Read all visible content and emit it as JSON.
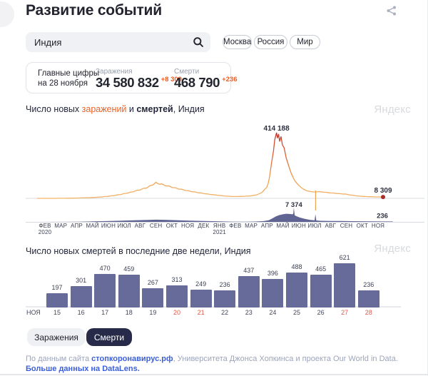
{
  "header": {
    "title": "Развитие событий"
  },
  "search": {
    "value": "Индия"
  },
  "regions": [
    {
      "label": "Москва"
    },
    {
      "label": "Россия"
    },
    {
      "label": "Мир"
    }
  ],
  "figures": {
    "title1": "Главные цифры",
    "title2": "на 28 ноября",
    "stats": [
      {
        "label": "Заражения",
        "value": "34 580 832",
        "delta": "+8 309"
      },
      {
        "label": "Смерти",
        "value": "468 790",
        "delta": "+236"
      }
    ]
  },
  "charts": {
    "watermark": "Яндекс"
  },
  "chart_data": [
    {
      "type": "line",
      "title_parts": {
        "prefix": "Число новых ",
        "highlight": "заражений",
        "middle": " и ",
        "bold": "смертей",
        "suffix": ", Индия"
      },
      "x_ticks": [
        {
          "label": "ФЕВ",
          "sub": "2020"
        },
        {
          "label": "МАР"
        },
        {
          "label": "АПР"
        },
        {
          "label": "МАЙ"
        },
        {
          "label": "ИЮН"
        },
        {
          "label": "ИЮЛ"
        },
        {
          "label": "АВГ"
        },
        {
          "label": "СЕН"
        },
        {
          "label": "ОКТ"
        },
        {
          "label": "НОЯ"
        },
        {
          "label": "ДЕК"
        },
        {
          "label": "ЯНВ",
          "sub": "2021"
        },
        {
          "label": "ФЕВ"
        },
        {
          "label": "МАР"
        },
        {
          "label": "АПР"
        },
        {
          "label": "МАЙ"
        },
        {
          "label": "ИЮН"
        },
        {
          "label": "ИЮЛ"
        },
        {
          "label": "АВГ"
        },
        {
          "label": "СЕН"
        },
        {
          "label": "ОКТ"
        },
        {
          "label": "НОЯ"
        }
      ],
      "axis_color": "#d7d9de",
      "annotation_color": "#2d3040",
      "series": [
        {
          "name": "заражения",
          "max_value": 414188,
          "peak": {
            "t": 0.692,
            "label": "414 188",
            "value": 414188
          },
          "end": {
            "t": 1.0,
            "label": "8 309",
            "value": 8309
          },
          "dot_color": "#a52f28",
          "gradient": [
            {
              "o": 0,
              "c": "#bd372e"
            },
            {
              "o": 0.35,
              "c": "#dd6437"
            },
            {
              "o": 0.7,
              "c": "#eda050"
            },
            {
              "o": 1,
              "c": "#f3b46a"
            }
          ],
          "anomaly": {
            "t": 0.805,
            "color": "#eda24f"
          },
          "points": [
            [
              0.0,
              0
            ],
            [
              0.05,
              50
            ],
            [
              0.09,
              800
            ],
            [
              0.12,
              2200
            ],
            [
              0.15,
              4000
            ],
            [
              0.18,
              8000
            ],
            [
              0.21,
              14000
            ],
            [
              0.24,
              24000
            ],
            [
              0.27,
              38000
            ],
            [
              0.3,
              56000
            ],
            [
              0.32,
              70000
            ],
            [
              0.335,
              88000
            ],
            [
              0.344,
              97000
            ],
            [
              0.355,
              92000
            ],
            [
              0.37,
              82000
            ],
            [
              0.4,
              65000
            ],
            [
              0.43,
              50000
            ],
            [
              0.46,
              38000
            ],
            [
              0.49,
              28000
            ],
            [
              0.52,
              20000
            ],
            [
              0.545,
              14500
            ],
            [
              0.565,
              11500
            ],
            [
              0.59,
              12000
            ],
            [
              0.615,
              15000
            ],
            [
              0.635,
              22000
            ],
            [
              0.652,
              40000
            ],
            [
              0.664,
              70000
            ],
            [
              0.672,
              130000
            ],
            [
              0.678,
              220000
            ],
            [
              0.683,
              310000
            ],
            [
              0.687,
              375000
            ],
            [
              0.69,
              395000
            ],
            [
              0.692,
              414188
            ],
            [
              0.695,
              380000
            ],
            [
              0.698,
              400000
            ],
            [
              0.701,
              370000
            ],
            [
              0.705,
              390000
            ],
            [
              0.709,
              340000
            ],
            [
              0.714,
              310000
            ],
            [
              0.72,
              255000
            ],
            [
              0.727,
              200000
            ],
            [
              0.735,
              155000
            ],
            [
              0.745,
              110000
            ],
            [
              0.755,
              85000
            ],
            [
              0.765,
              65000
            ],
            [
              0.78,
              47000
            ],
            [
              0.8,
              40000
            ],
            [
              0.815,
              42000
            ],
            [
              0.83,
              39000
            ],
            [
              0.85,
              34000
            ],
            [
              0.87,
              30000
            ],
            [
              0.89,
              27000
            ],
            [
              0.91,
              20000
            ],
            [
              0.93,
              14000
            ],
            [
              0.95,
              11500
            ],
            [
              0.97,
              10000
            ],
            [
              0.99,
              8800
            ],
            [
              1.0,
              8309
            ]
          ]
        },
        {
          "name": "смерти",
          "max_value": 7374,
          "peak": {
            "t": 0.742,
            "label": "7 374",
            "value": 7374
          },
          "end": {
            "t": 1.0,
            "label": "236",
            "value": 236
          },
          "fill": "#5f6492",
          "points": [
            [
              0.0,
              0
            ],
            [
              0.08,
              30
            ],
            [
              0.12,
              90
            ],
            [
              0.16,
              250
            ],
            [
              0.2,
              420
            ],
            [
              0.24,
              600
            ],
            [
              0.28,
              820
            ],
            [
              0.32,
              1000
            ],
            [
              0.344,
              1150
            ],
            [
              0.37,
              1080
            ],
            [
              0.4,
              900
            ],
            [
              0.44,
              650
            ],
            [
              0.48,
              480
            ],
            [
              0.52,
              320
            ],
            [
              0.56,
              140
            ],
            [
              0.6,
              110
            ],
            [
              0.63,
              190
            ],
            [
              0.655,
              400
            ],
            [
              0.67,
              900
            ],
            [
              0.68,
              1800
            ],
            [
              0.69,
              2800
            ],
            [
              0.7,
              3500
            ],
            [
              0.71,
              3900
            ],
            [
              0.72,
              4200
            ],
            [
              0.73,
              4100
            ],
            [
              0.738,
              3900
            ],
            [
              0.7405,
              4200
            ],
            [
              0.742,
              7374
            ],
            [
              0.7445,
              3400
            ],
            [
              0.75,
              2900
            ],
            [
              0.76,
              2200
            ],
            [
              0.775,
              1500
            ],
            [
              0.79,
              1000
            ],
            [
              0.802,
              850
            ],
            [
              0.8045,
              3990
            ],
            [
              0.807,
              750
            ],
            [
              0.82,
              560
            ],
            [
              0.85,
              480
            ],
            [
              0.88,
              440
            ],
            [
              0.91,
              380
            ],
            [
              0.94,
              330
            ],
            [
              0.97,
              280
            ],
            [
              1.0,
              236
            ],
            [
              1.028,
              236
            ]
          ]
        }
      ]
    },
    {
      "type": "bar",
      "title": "Число новых смертей в последние две недели, Индия",
      "month_label": "НОЯ",
      "categories": [
        "15",
        "16",
        "17",
        "18",
        "19",
        "20",
        "21",
        "22",
        "23",
        "24",
        "25",
        "26",
        "27",
        "28"
      ],
      "values": [
        197,
        301,
        470,
        459,
        267,
        313,
        249,
        236,
        437,
        396,
        488,
        465,
        621,
        236
      ],
      "weekend_indices": [
        5,
        6,
        12,
        13
      ],
      "bar_color": "#666b99",
      "ylim": [
        0,
        621
      ]
    }
  ],
  "toggle": [
    {
      "label": "Заражения",
      "active": false
    },
    {
      "label": "Смерти",
      "active": true
    }
  ],
  "footer": {
    "prefix": "По данным сайта ",
    "link1": "стопкоронавирус.рф",
    "middle": ", Университета Джонса Хопкинса и проекта Our World in Data. ",
    "link2": "Больше данных на DataLens."
  }
}
